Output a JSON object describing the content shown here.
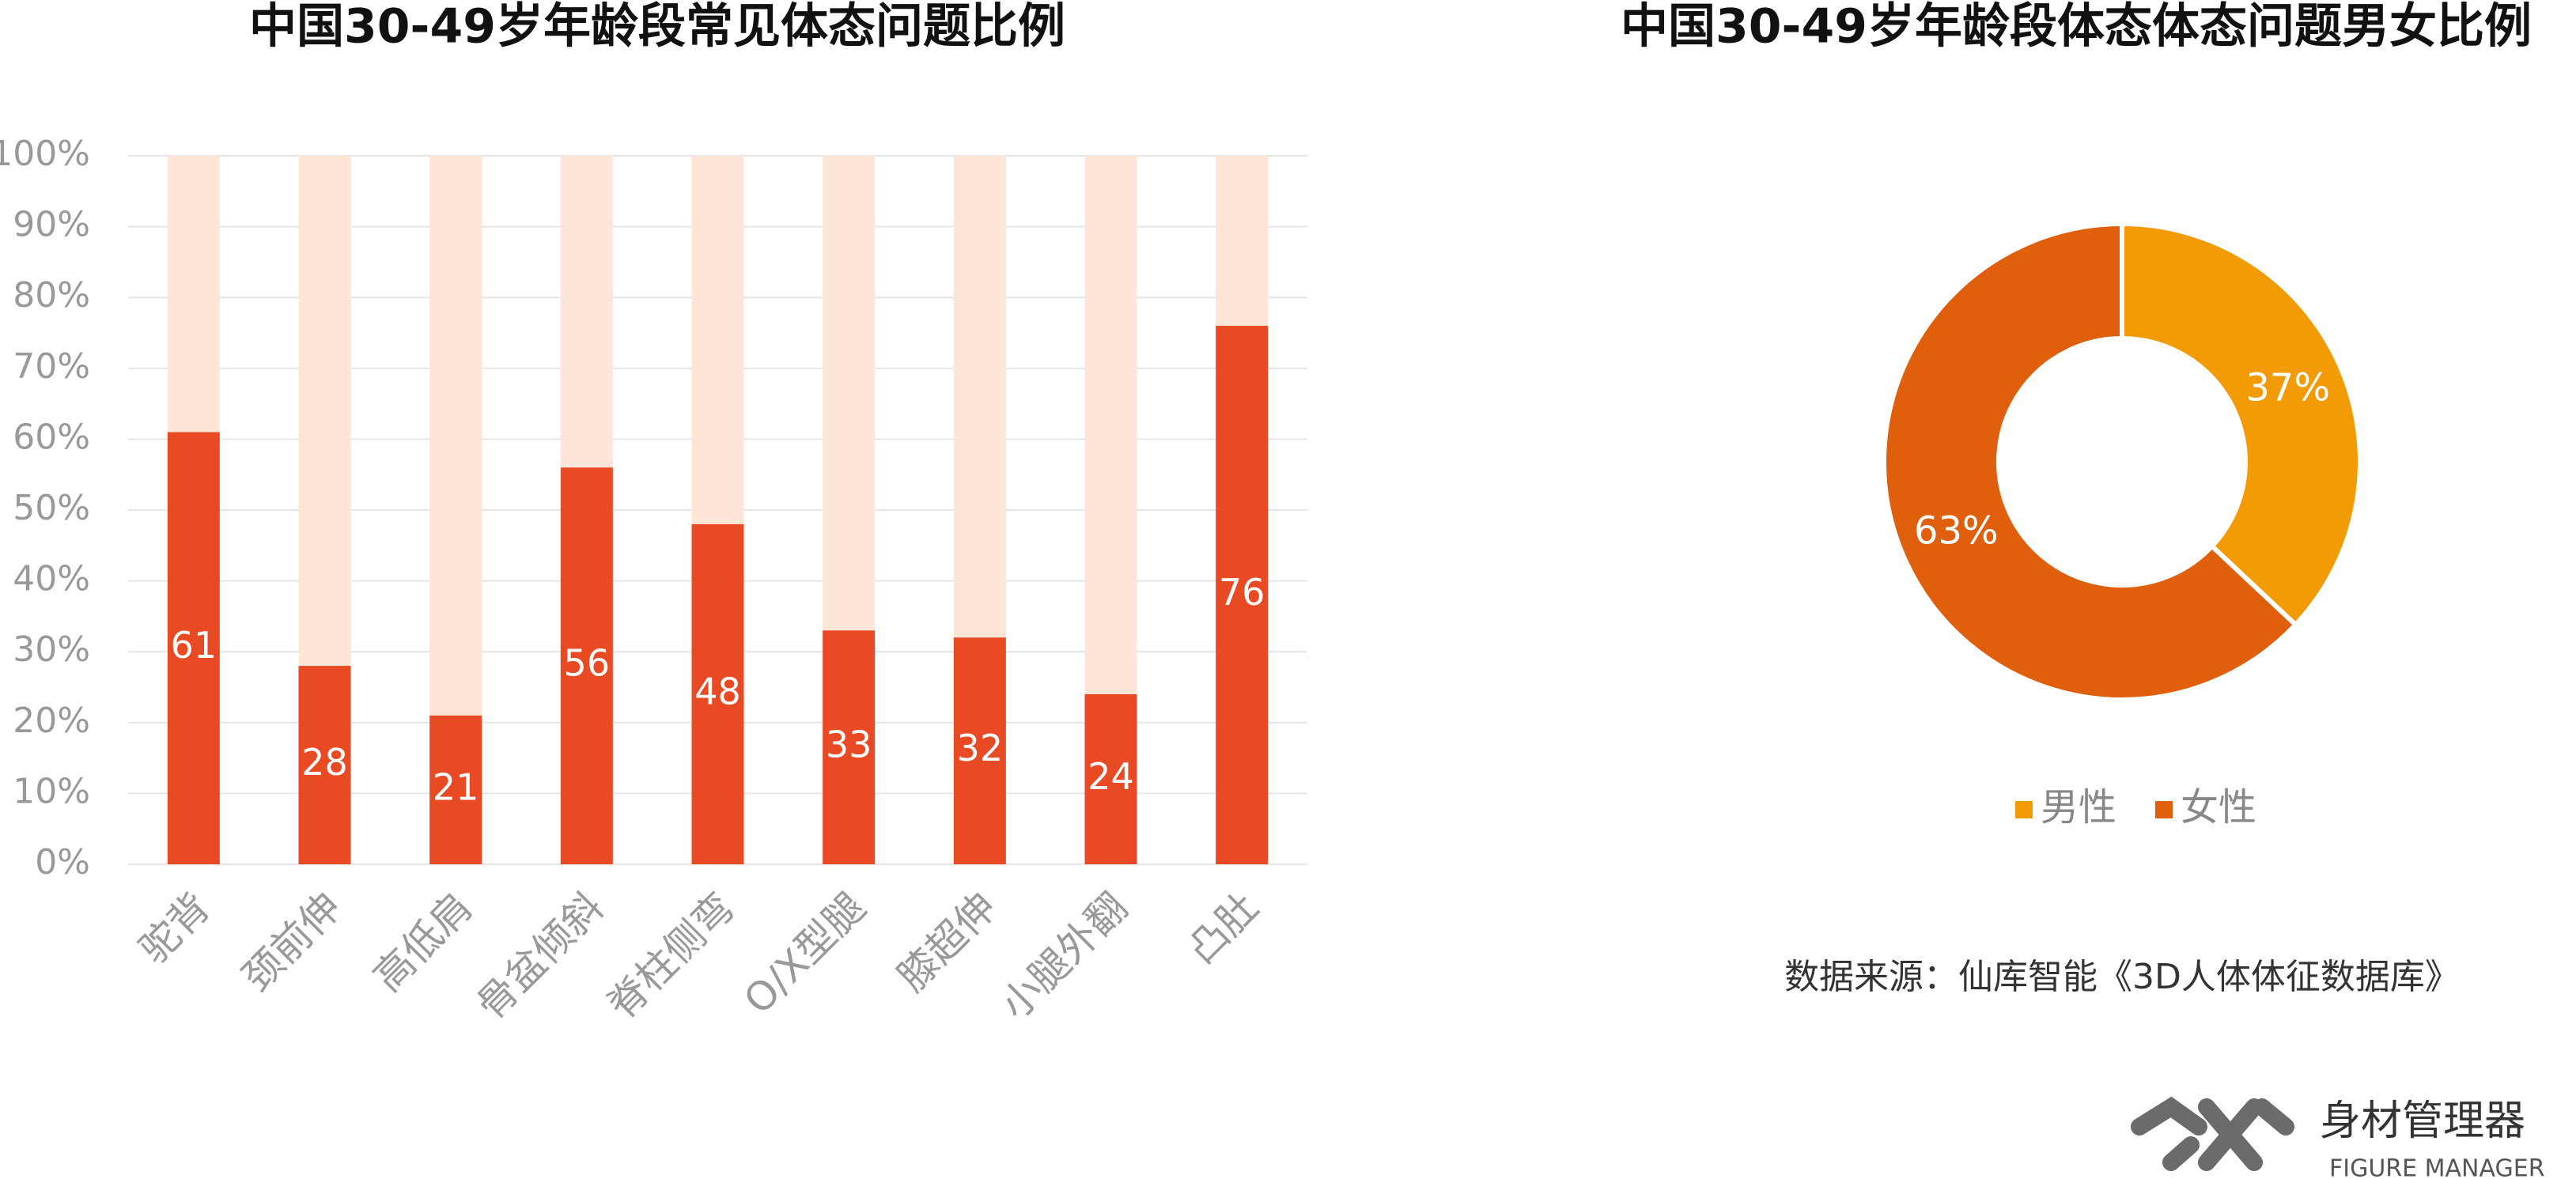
{
  "chart_data": [
    {
      "type": "bar",
      "title": "中国30-49岁年龄段常见体态问题比例",
      "categories": [
        "驼背",
        "颈前伸",
        "高低肩",
        "骨盆倾斜",
        "脊柱侧弯",
        "O/X型腿",
        "膝超伸",
        "小腿外翻",
        "凸肚"
      ],
      "values": [
        61,
        28,
        21,
        56,
        48,
        33,
        32,
        24,
        76
      ],
      "color": "#e84a24",
      "track_color": "#fde5d7",
      "ylim": [
        0,
        100
      ],
      "yticks": [
        {
          "value": 0,
          "label": "0%"
        },
        {
          "value": 10,
          "label": "10%"
        },
        {
          "value": 20,
          "label": "20%"
        },
        {
          "value": 30,
          "label": "30%"
        },
        {
          "value": 40,
          "label": "40%"
        },
        {
          "value": 50,
          "label": "50%"
        },
        {
          "value": 60,
          "label": "60%"
        },
        {
          "value": 70,
          "label": "70%"
        },
        {
          "value": 80,
          "label": "80%"
        },
        {
          "value": 90,
          "label": "90%"
        },
        {
          "value": 100,
          "label": "100%"
        }
      ],
      "grid": true
    },
    {
      "type": "donut",
      "title": "中国30-49岁年龄段体态体态问题男女比例",
      "categories": [
        "男性",
        "女性"
      ],
      "values": [
        37,
        63
      ],
      "value_labels": [
        "37%",
        "63%"
      ],
      "colors": [
        "#f29b05",
        "#e05f0c"
      ],
      "legend": "bottom",
      "source": "数据来源：仙库智能《3D人体体征数据库》"
    }
  ],
  "logo": {
    "name": "身材管理器",
    "subtitle": "FIGURE MANAGER"
  }
}
